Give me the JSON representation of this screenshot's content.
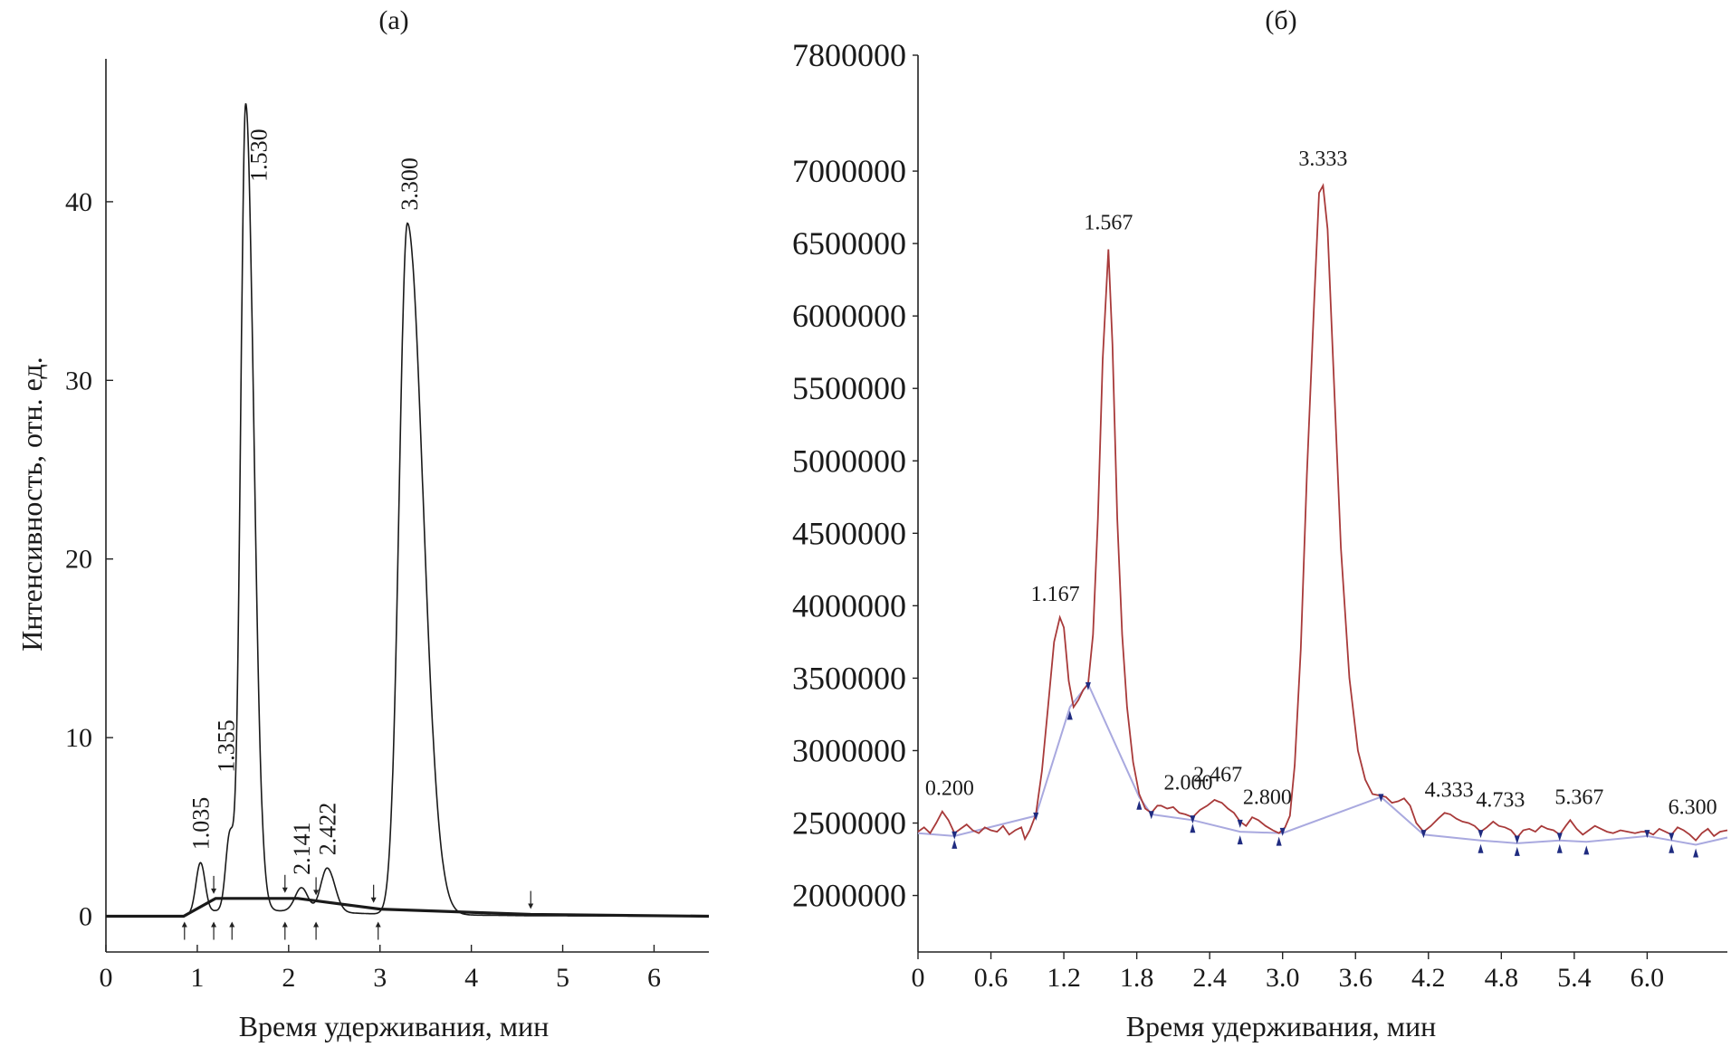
{
  "chart_data": [
    {
      "panel_label": "(а)",
      "type": "line",
      "xlabel": "Время удерживания, мин",
      "ylabel": "Интенсивность, отн. ед.",
      "xlim": [
        0,
        6.6
      ],
      "ylim": [
        -2,
        48
      ],
      "x_ticks": [
        0,
        1,
        2,
        3,
        4,
        5,
        6
      ],
      "y_ticks": [
        0,
        10,
        20,
        30,
        40
      ],
      "peaks": [
        {
          "label": "1.035",
          "x": 1.035,
          "y": 3.0
        },
        {
          "label": "1.355",
          "x": 1.355,
          "y": 4.5
        },
        {
          "label": "1.530",
          "x": 1.53,
          "y": 45.5
        },
        {
          "label": "2.141",
          "x": 2.141,
          "y": 1.6
        },
        {
          "label": "2.422",
          "x": 2.422,
          "y": 2.7
        },
        {
          "label": "3.300",
          "x": 3.3,
          "y": 38.8
        }
      ],
      "baseline": [
        [
          0,
          0
        ],
        [
          0.85,
          0
        ],
        [
          1.2,
          1.0
        ],
        [
          2.1,
          1.0
        ],
        [
          2.7,
          0.6
        ],
        [
          3.0,
          0.4
        ],
        [
          4.65,
          0.1
        ],
        [
          6.6,
          0.0
        ]
      ],
      "markers_up": [
        0.86,
        1.18,
        1.38,
        1.96,
        2.3,
        2.98
      ],
      "markers_down": [
        1.18,
        1.96,
        2.3,
        2.93,
        4.65
      ]
    },
    {
      "panel_label": "(б)",
      "type": "line",
      "xlabel": "Время удерживания, мин",
      "ylabel": "",
      "xlim": [
        0,
        6.66
      ],
      "ylim": [
        1610000,
        7800000
      ],
      "x_ticks": [
        "0",
        "0.6",
        "1.2",
        "1.8",
        "2.4",
        "3.0",
        "3.6",
        "4.2",
        "4.8",
        "5.4",
        "6.0"
      ],
      "y_ticks": [
        "2000000",
        "2500000",
        "3000000",
        "3500000",
        "4000000",
        "4500000",
        "5000000",
        "5500000",
        "6000000",
        "6500000",
        "7000000",
        "7800000"
      ],
      "colors": {
        "signal": "#a83a3a",
        "baseline": "#a9a9df",
        "marker": "#1f2b80"
      },
      "peak_labels": [
        {
          "label": "0.200",
          "x": 0.2,
          "y": 2580000
        },
        {
          "label": "1.167",
          "x": 1.167,
          "y": 3920000
        },
        {
          "label": "1.567",
          "x": 1.567,
          "y": 6460000
        },
        {
          "label": "2.000",
          "x": 2.0,
          "y": 2620000
        },
        {
          "label": "2.467",
          "x": 2.467,
          "y": 2650000
        },
        {
          "label": "2.800",
          "x": 2.8,
          "y": 2520000
        },
        {
          "label": "3.333",
          "x": 3.333,
          "y": 6900000
        },
        {
          "label": "4.333",
          "x": 4.333,
          "y": 2570000
        },
        {
          "label": "4.733",
          "x": 4.733,
          "y": 2500000
        },
        {
          "label": "5.367",
          "x": 5.367,
          "y": 2520000
        },
        {
          "label": "6.300",
          "x": 6.3,
          "y": 2450000
        }
      ],
      "signal": [
        [
          0.0,
          2440000
        ],
        [
          0.05,
          2470000
        ],
        [
          0.1,
          2430000
        ],
        [
          0.15,
          2500000
        ],
        [
          0.2,
          2580000
        ],
        [
          0.25,
          2520000
        ],
        [
          0.3,
          2430000
        ],
        [
          0.35,
          2460000
        ],
        [
          0.4,
          2490000
        ],
        [
          0.45,
          2450000
        ],
        [
          0.5,
          2430000
        ],
        [
          0.55,
          2470000
        ],
        [
          0.6,
          2450000
        ],
        [
          0.65,
          2440000
        ],
        [
          0.7,
          2480000
        ],
        [
          0.75,
          2420000
        ],
        [
          0.8,
          2450000
        ],
        [
          0.85,
          2470000
        ],
        [
          0.88,
          2390000
        ],
        [
          0.92,
          2450000
        ],
        [
          0.97,
          2560000
        ],
        [
          1.02,
          2860000
        ],
        [
          1.07,
          3300000
        ],
        [
          1.12,
          3750000
        ],
        [
          1.167,
          3920000
        ],
        [
          1.2,
          3850000
        ],
        [
          1.24,
          3480000
        ],
        [
          1.28,
          3300000
        ],
        [
          1.32,
          3350000
        ],
        [
          1.36,
          3420000
        ],
        [
          1.4,
          3460000
        ],
        [
          1.44,
          3800000
        ],
        [
          1.48,
          4600000
        ],
        [
          1.52,
          5700000
        ],
        [
          1.567,
          6460000
        ],
        [
          1.6,
          5800000
        ],
        [
          1.64,
          4600000
        ],
        [
          1.68,
          3800000
        ],
        [
          1.72,
          3300000
        ],
        [
          1.77,
          2920000
        ],
        [
          1.82,
          2700000
        ],
        [
          1.87,
          2600000
        ],
        [
          1.92,
          2570000
        ],
        [
          1.97,
          2620000
        ],
        [
          2.0,
          2620000
        ],
        [
          2.05,
          2600000
        ],
        [
          2.1,
          2610000
        ],
        [
          2.15,
          2570000
        ],
        [
          2.2,
          2560000
        ],
        [
          2.26,
          2540000
        ],
        [
          2.32,
          2590000
        ],
        [
          2.38,
          2620000
        ],
        [
          2.44,
          2660000
        ],
        [
          2.467,
          2650000
        ],
        [
          2.5,
          2640000
        ],
        [
          2.55,
          2600000
        ],
        [
          2.6,
          2570000
        ],
        [
          2.65,
          2510000
        ],
        [
          2.7,
          2480000
        ],
        [
          2.75,
          2540000
        ],
        [
          2.8,
          2520000
        ],
        [
          2.86,
          2480000
        ],
        [
          2.92,
          2450000
        ],
        [
          2.97,
          2430000
        ],
        [
          3.02,
          2470000
        ],
        [
          3.06,
          2550000
        ],
        [
          3.1,
          2900000
        ],
        [
          3.15,
          3700000
        ],
        [
          3.2,
          4900000
        ],
        [
          3.26,
          6100000
        ],
        [
          3.3,
          6850000
        ],
        [
          3.333,
          6900000
        ],
        [
          3.37,
          6600000
        ],
        [
          3.42,
          5600000
        ],
        [
          3.48,
          4400000
        ],
        [
          3.55,
          3500000
        ],
        [
          3.62,
          3000000
        ],
        [
          3.68,
          2800000
        ],
        [
          3.74,
          2700000
        ],
        [
          3.8,
          2690000
        ],
        [
          3.85,
          2680000
        ],
        [
          3.9,
          2640000
        ],
        [
          3.95,
          2650000
        ],
        [
          4.0,
          2670000
        ],
        [
          4.05,
          2620000
        ],
        [
          4.1,
          2500000
        ],
        [
          4.16,
          2440000
        ],
        [
          4.22,
          2480000
        ],
        [
          4.28,
          2530000
        ],
        [
          4.333,
          2570000
        ],
        [
          4.38,
          2560000
        ],
        [
          4.43,
          2530000
        ],
        [
          4.48,
          2510000
        ],
        [
          4.53,
          2500000
        ],
        [
          4.58,
          2480000
        ],
        [
          4.63,
          2440000
        ],
        [
          4.68,
          2470000
        ],
        [
          4.733,
          2510000
        ],
        [
          4.78,
          2480000
        ],
        [
          4.83,
          2470000
        ],
        [
          4.88,
          2450000
        ],
        [
          4.93,
          2400000
        ],
        [
          4.98,
          2450000
        ],
        [
          5.03,
          2460000
        ],
        [
          5.08,
          2440000
        ],
        [
          5.13,
          2480000
        ],
        [
          5.18,
          2460000
        ],
        [
          5.23,
          2450000
        ],
        [
          5.28,
          2420000
        ],
        [
          5.33,
          2480000
        ],
        [
          5.367,
          2520000
        ],
        [
          5.42,
          2460000
        ],
        [
          5.47,
          2420000
        ],
        [
          5.52,
          2450000
        ],
        [
          5.57,
          2480000
        ],
        [
          5.62,
          2460000
        ],
        [
          5.67,
          2440000
        ],
        [
          5.72,
          2430000
        ],
        [
          5.78,
          2450000
        ],
        [
          5.84,
          2440000
        ],
        [
          5.9,
          2430000
        ],
        [
          5.95,
          2440000
        ],
        [
          6.0,
          2440000
        ],
        [
          6.05,
          2420000
        ],
        [
          6.1,
          2460000
        ],
        [
          6.15,
          2440000
        ],
        [
          6.2,
          2420000
        ],
        [
          6.25,
          2470000
        ],
        [
          6.3,
          2450000
        ],
        [
          6.35,
          2420000
        ],
        [
          6.4,
          2380000
        ],
        [
          6.45,
          2430000
        ],
        [
          6.5,
          2460000
        ],
        [
          6.55,
          2410000
        ],
        [
          6.6,
          2440000
        ],
        [
          6.66,
          2450000
        ]
      ],
      "baseline": [
        [
          0.0,
          2430000
        ],
        [
          0.3,
          2410000
        ],
        [
          0.97,
          2550000
        ],
        [
          1.25,
          3300000
        ],
        [
          1.4,
          3460000
        ],
        [
          1.82,
          2680000
        ],
        [
          1.92,
          2560000
        ],
        [
          2.26,
          2520000
        ],
        [
          2.65,
          2440000
        ],
        [
          3.0,
          2430000
        ],
        [
          3.81,
          2680000
        ],
        [
          4.16,
          2420000
        ],
        [
          4.63,
          2380000
        ],
        [
          4.93,
          2360000
        ],
        [
          5.28,
          2380000
        ],
        [
          5.5,
          2370000
        ],
        [
          6.0,
          2410000
        ],
        [
          6.2,
          2380000
        ],
        [
          6.4,
          2350000
        ],
        [
          6.66,
          2400000
        ]
      ],
      "markers_down": [
        0.3,
        0.97,
        1.4,
        1.92,
        2.26,
        2.65,
        3.0,
        3.81,
        4.16,
        4.63,
        4.93,
        5.28,
        6.0,
        6.2
      ],
      "markers_up": [
        0.3,
        1.25,
        1.82,
        2.26,
        2.65,
        2.97,
        4.63,
        4.93,
        5.28,
        5.5,
        6.2,
        6.4
      ]
    }
  ]
}
